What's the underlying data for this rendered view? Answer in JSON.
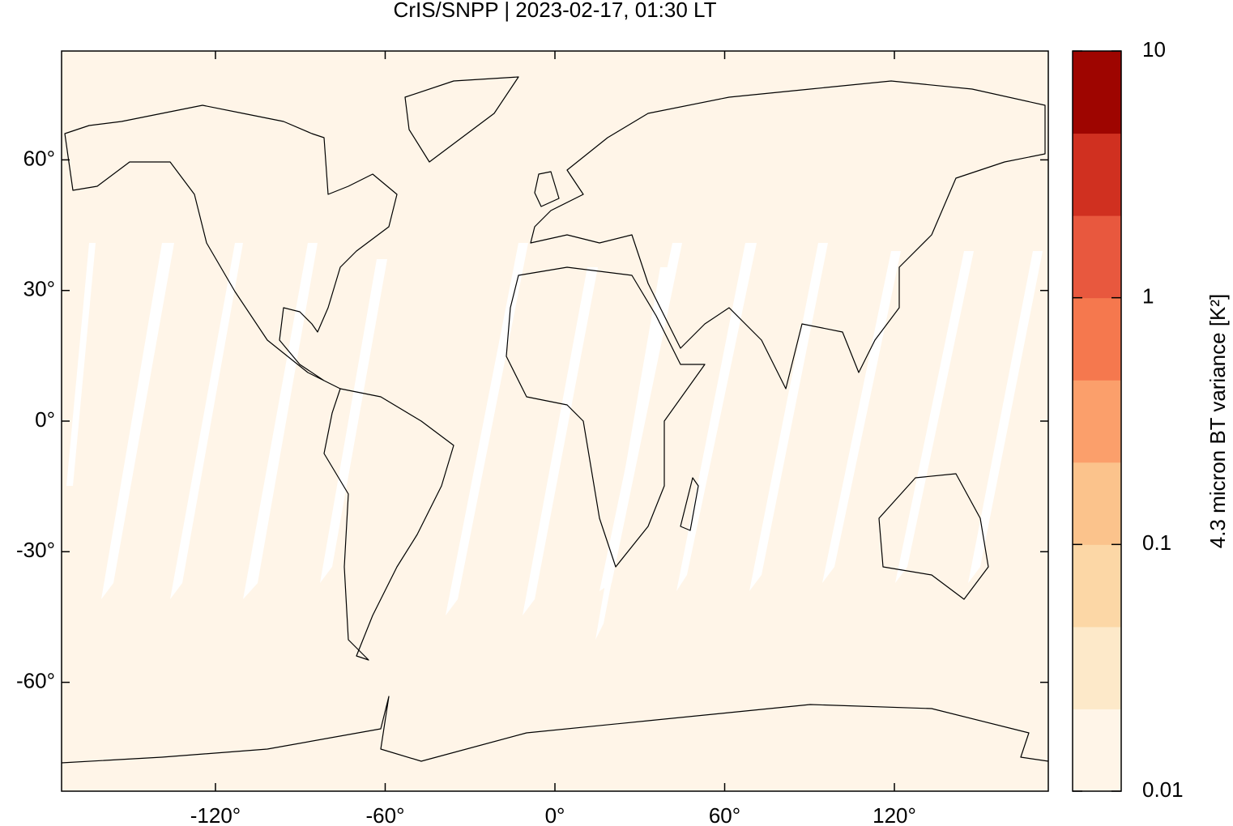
{
  "map": {
    "title": "CrIS/SNPP | 2023-02-17, 01:30 LT",
    "xlim": [
      -174.4,
      174.4
    ],
    "ylim": [
      -85,
      85
    ],
    "xticks": [
      {
        "value": -120,
        "label": "-120°"
      },
      {
        "value": -60,
        "label": "-60°"
      },
      {
        "value": 0,
        "label": "0°"
      },
      {
        "value": 60,
        "label": "60°"
      },
      {
        "value": 120,
        "label": "120°"
      }
    ],
    "yticks": [
      {
        "value": -60,
        "label": "-60°"
      },
      {
        "value": -30,
        "label": "-30°"
      },
      {
        "value": 0,
        "label": "0°"
      },
      {
        "value": 30,
        "label": "30°"
      },
      {
        "value": 60,
        "label": "60°"
      }
    ],
    "colorbar": {
      "label": "4.3 micron BT variance [K²]",
      "scale": "log",
      "lim": [
        0.01,
        10
      ],
      "ticks": [
        0.01,
        0.1,
        1,
        10
      ],
      "colors": [
        "#fff5e8",
        "#fde9c9",
        "#fcd7a6",
        "#fbc38c",
        "#fb9f6b",
        "#f5784e",
        "#e8583e",
        "#d03020",
        "#9e0500"
      ]
    }
  }
}
